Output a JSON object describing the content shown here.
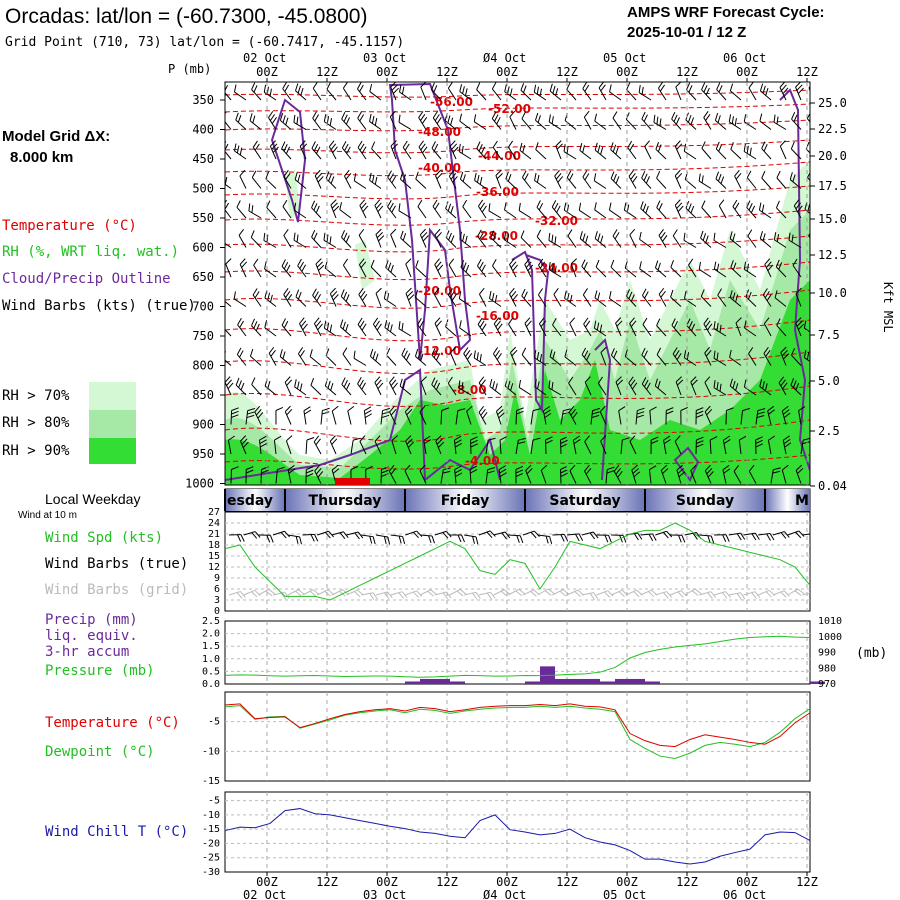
{
  "header": {
    "title": "Orcadas:  lat/lon = (-60.7300, -45.0800)",
    "grid_point": "Grid Point (710, 73) lat/lon = (-60.7417, -45.1157)",
    "cycle_label": "AMPS WRF Forecast Cycle:",
    "cycle_value": "2025-10-01 / 12  Z"
  },
  "left_labels": {
    "p_unit": "P (mb)",
    "model_grid": "Model Grid ΔX:",
    "model_grid_value": "8.000 km",
    "temperature": "Temperature (°C)",
    "rh": "RH (%, WRT liq. wat.)",
    "cloud": "Cloud/Precip Outline",
    "wind_barbs": "Wind Barbs (kts) (true)",
    "rh70": "RH > 70%",
    "rh80": "RH > 80%",
    "rh90": "RH > 90%",
    "local_weekday": "Local Weekday",
    "wind_at": "Wind at 10 m",
    "wind_spd": "Wind Spd (kts)",
    "wind_barbs_true": "Wind Barbs (true)",
    "wind_barbs_grid": "Wind Barbs (grid)",
    "precip": "Precip (mm)",
    "liq": "liq. equiv.",
    "accum": "3-hr accum",
    "pressure": "Pressure (mb)",
    "temp2": "Temperature (°C)",
    "dewpoint": "Dewpoint (°C)",
    "windchill": "Wind Chill T (°C)"
  },
  "colors": {
    "temp": "#e00000",
    "rh": "#22c022",
    "cloud": "#6a2a9a",
    "rh70": "#d4f7d4",
    "rh80": "#a6e8a6",
    "rh90": "#33dd33",
    "windchill": "#1a1aa8",
    "grid_barb": "#bbbbbb"
  },
  "time_axis": {
    "top_dates": [
      "02 Oct",
      "03 Oct",
      "Ø4 Oct",
      "05 Oct",
      "06 Oct"
    ],
    "ticks": [
      "00Z",
      "12Z",
      "00Z",
      "12Z",
      "00Z",
      "12Z",
      "00Z",
      "12Z",
      "00Z",
      "12Z"
    ],
    "bottom_dates": [
      "02 Oct",
      "03 Oct",
      "Ø4 Oct",
      "05 Oct",
      "06 Oct"
    ]
  },
  "weekdays": [
    "esday",
    "Thursday",
    "Friday",
    "Saturday",
    "Sunday",
    "M"
  ],
  "chart_data": [
    {
      "type": "heatmap",
      "title": "Vertical cross-section",
      "pressure_levels": [
        "350",
        "400",
        "450",
        "500",
        "550",
        "600",
        "650",
        "700",
        "750",
        "800",
        "850",
        "900",
        "950",
        "1000"
      ],
      "height_labels": [
        "25.0",
        "22.5",
        "20.0",
        "17.5",
        "15.0",
        "12.5",
        "10.0",
        "7.5",
        "5.0",
        "2.5",
        "0.04"
      ],
      "height_unit": "Kft MSL",
      "temp_contour_labels": [
        "-56.00",
        "-52.00",
        "-48.00",
        "-44.00",
        "-40.00",
        "-36.00",
        "-32.00",
        "-28.00",
        "-24.00",
        "-20.00",
        "-16.00",
        "-12.00",
        "-8.00",
        "-4.00"
      ]
    },
    {
      "type": "line",
      "title": "Wind Spd (kts)",
      "ylim": [
        0,
        27
      ],
      "yticks": [
        "27",
        "24",
        "21",
        "18",
        "15",
        "12",
        "9",
        "6",
        "3",
        "0"
      ],
      "x_hours": [
        0,
        3,
        6,
        9,
        12,
        15,
        18,
        21,
        24,
        27,
        30,
        33,
        36,
        39,
        42,
        45,
        48,
        51,
        54,
        57,
        60,
        63,
        66,
        69,
        72,
        75,
        78,
        81,
        84,
        87,
        90,
        93,
        96,
        99,
        102,
        105,
        108,
        111,
        114,
        117
      ],
      "values": [
        17,
        18,
        12,
        8,
        4,
        4,
        4,
        3,
        5,
        7,
        9,
        11,
        13,
        15,
        17,
        19,
        17,
        11,
        10,
        14,
        13,
        6,
        12,
        19,
        18,
        17,
        19,
        21,
        22,
        22,
        24,
        22,
        19,
        18,
        17,
        16,
        15,
        14,
        12,
        7
      ]
    },
    {
      "type": "line",
      "title": "Precip / Pressure",
      "precip_ylim": [
        0,
        2.5
      ],
      "precip_yticks": [
        "2.5",
        "2.0",
        "1.5",
        "1.0",
        "0.5",
        "0.0"
      ],
      "pressure_ylim": [
        970,
        1010
      ],
      "pressure_yticks": [
        "1010",
        "1000",
        "990",
        "980",
        "970"
      ],
      "pressure_unit": "(mb)",
      "precip_values": [
        0,
        0,
        0,
        0,
        0,
        0,
        0,
        0,
        0,
        0,
        0,
        0,
        0.1,
        0.2,
        0.2,
        0.1,
        0,
        0,
        0,
        0,
        0.1,
        0.7,
        0.2,
        0.2,
        0.2,
        0.1,
        0.2,
        0.2,
        0.1,
        0,
        0,
        0,
        0,
        0,
        0,
        0,
        0,
        0,
        0,
        0.1
      ],
      "pressure_values": [
        975.5,
        975.8,
        975.6,
        975.2,
        975.0,
        975.2,
        975.4,
        975.1,
        974.8,
        974.9,
        975.1,
        975.0,
        974.6,
        974.3,
        974.5,
        975.0,
        975.5,
        975.3,
        975.0,
        975.1,
        975.4,
        975.3,
        975.6,
        976.1,
        976.4,
        977.5,
        980.5,
        986.5,
        990.0,
        992.0,
        993.5,
        994.5,
        995.5,
        997.0,
        998.5,
        999.5,
        1000.0,
        1000.3,
        999.8,
        999.5
      ]
    },
    {
      "type": "line",
      "title": "Temperature / Dewpoint",
      "ylim": [
        -15,
        0
      ],
      "yticks": [
        "-5",
        "-10",
        "-15"
      ],
      "temperature": [
        -2.2,
        -2.0,
        -4.5,
        -4.3,
        -4.2,
        -6.0,
        -5.3,
        -4.5,
        -3.8,
        -3.3,
        -3.0,
        -2.8,
        -3.2,
        -2.6,
        -2.8,
        -3.3,
        -3.0,
        -2.6,
        -2.4,
        -2.3,
        -2.3,
        -2.1,
        -2.3,
        -2.0,
        -2.4,
        -2.5,
        -3.0,
        -7.0,
        -8.2,
        -9.0,
        -9.2,
        -8.0,
        -7.2,
        -7.6,
        -8.0,
        -8.5,
        -8.8,
        -7.5,
        -5.2,
        -3.5
      ],
      "dewpoint": [
        -2.5,
        -2.3,
        -4.6,
        -4.2,
        -4.1,
        -6.1,
        -5.4,
        -4.7,
        -3.9,
        -3.5,
        -3.2,
        -3.0,
        -3.5,
        -2.9,
        -3.1,
        -3.6,
        -3.2,
        -2.9,
        -2.7,
        -2.6,
        -2.6,
        -2.4,
        -2.6,
        -2.4,
        -2.7,
        -2.9,
        -3.3,
        -8.0,
        -9.5,
        -10.8,
        -11.2,
        -10.3,
        -9.0,
        -8.5,
        -8.8,
        -9.2,
        -8.5,
        -6.8,
        -4.5,
        -2.8
      ]
    },
    {
      "type": "line",
      "title": "Wind Chill T (°C)",
      "ylim": [
        -30,
        -5
      ],
      "yticks": [
        "-5",
        "-10",
        "-15",
        "-20",
        "-25",
        "-30"
      ],
      "values": [
        -15.5,
        -14.3,
        -14.5,
        -13.0,
        -8.5,
        -7.8,
        -9.6,
        -10.0,
        -11.0,
        -12.0,
        -13.0,
        -14.0,
        -14.8,
        -16.0,
        -16.5,
        -17.5,
        -18.0,
        -12.0,
        -10.0,
        -15.2,
        -16.0,
        -17.0,
        -16.5,
        -15.0,
        -18.0,
        -19.5,
        -20.5,
        -22.5,
        -25.5,
        -25.5,
        -26.5,
        -27.2,
        -26.5,
        -24.5,
        -23.2,
        -22.0,
        -17.0,
        -16.0,
        -16.2,
        -19.0
      ]
    }
  ]
}
